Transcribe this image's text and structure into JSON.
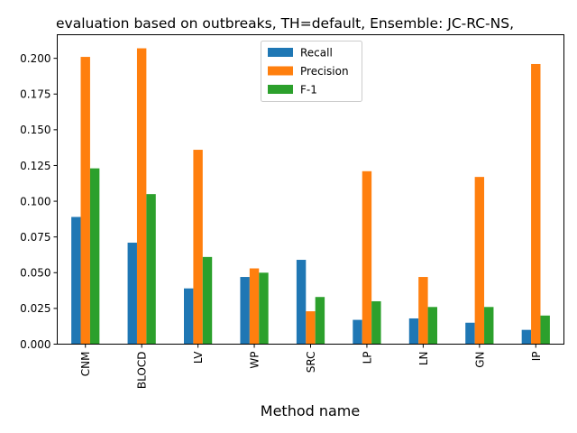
{
  "chart_data": {
    "type": "bar",
    "title": "evaluation based on outbreaks, TH=default, Ensemble: JC-RC-NS,",
    "xlabel": "Method name",
    "ylabel": "",
    "categories": [
      "CNM",
      "BLOCD",
      "LV",
      "WP",
      "SRC",
      "LP",
      "LN",
      "GN",
      "IP"
    ],
    "series": [
      {
        "name": "Recall",
        "color": "#1f77b4",
        "values": [
          0.089,
          0.071,
          0.039,
          0.047,
          0.059,
          0.017,
          0.018,
          0.015,
          0.01
        ]
      },
      {
        "name": "Precision",
        "color": "#ff7f0e",
        "values": [
          0.201,
          0.207,
          0.136,
          0.053,
          0.023,
          0.121,
          0.047,
          0.117,
          0.196
        ]
      },
      {
        "name": "F-1",
        "color": "#2ca02c",
        "values": [
          0.123,
          0.105,
          0.061,
          0.05,
          0.033,
          0.03,
          0.026,
          0.026,
          0.02
        ]
      }
    ],
    "ylim": [
      0,
      0.2165
    ],
    "yticks": [
      "0.000",
      "0.025",
      "0.050",
      "0.075",
      "0.100",
      "0.125",
      "0.150",
      "0.175",
      "0.200"
    ],
    "legend_position": "upper-center",
    "grid": false
  }
}
